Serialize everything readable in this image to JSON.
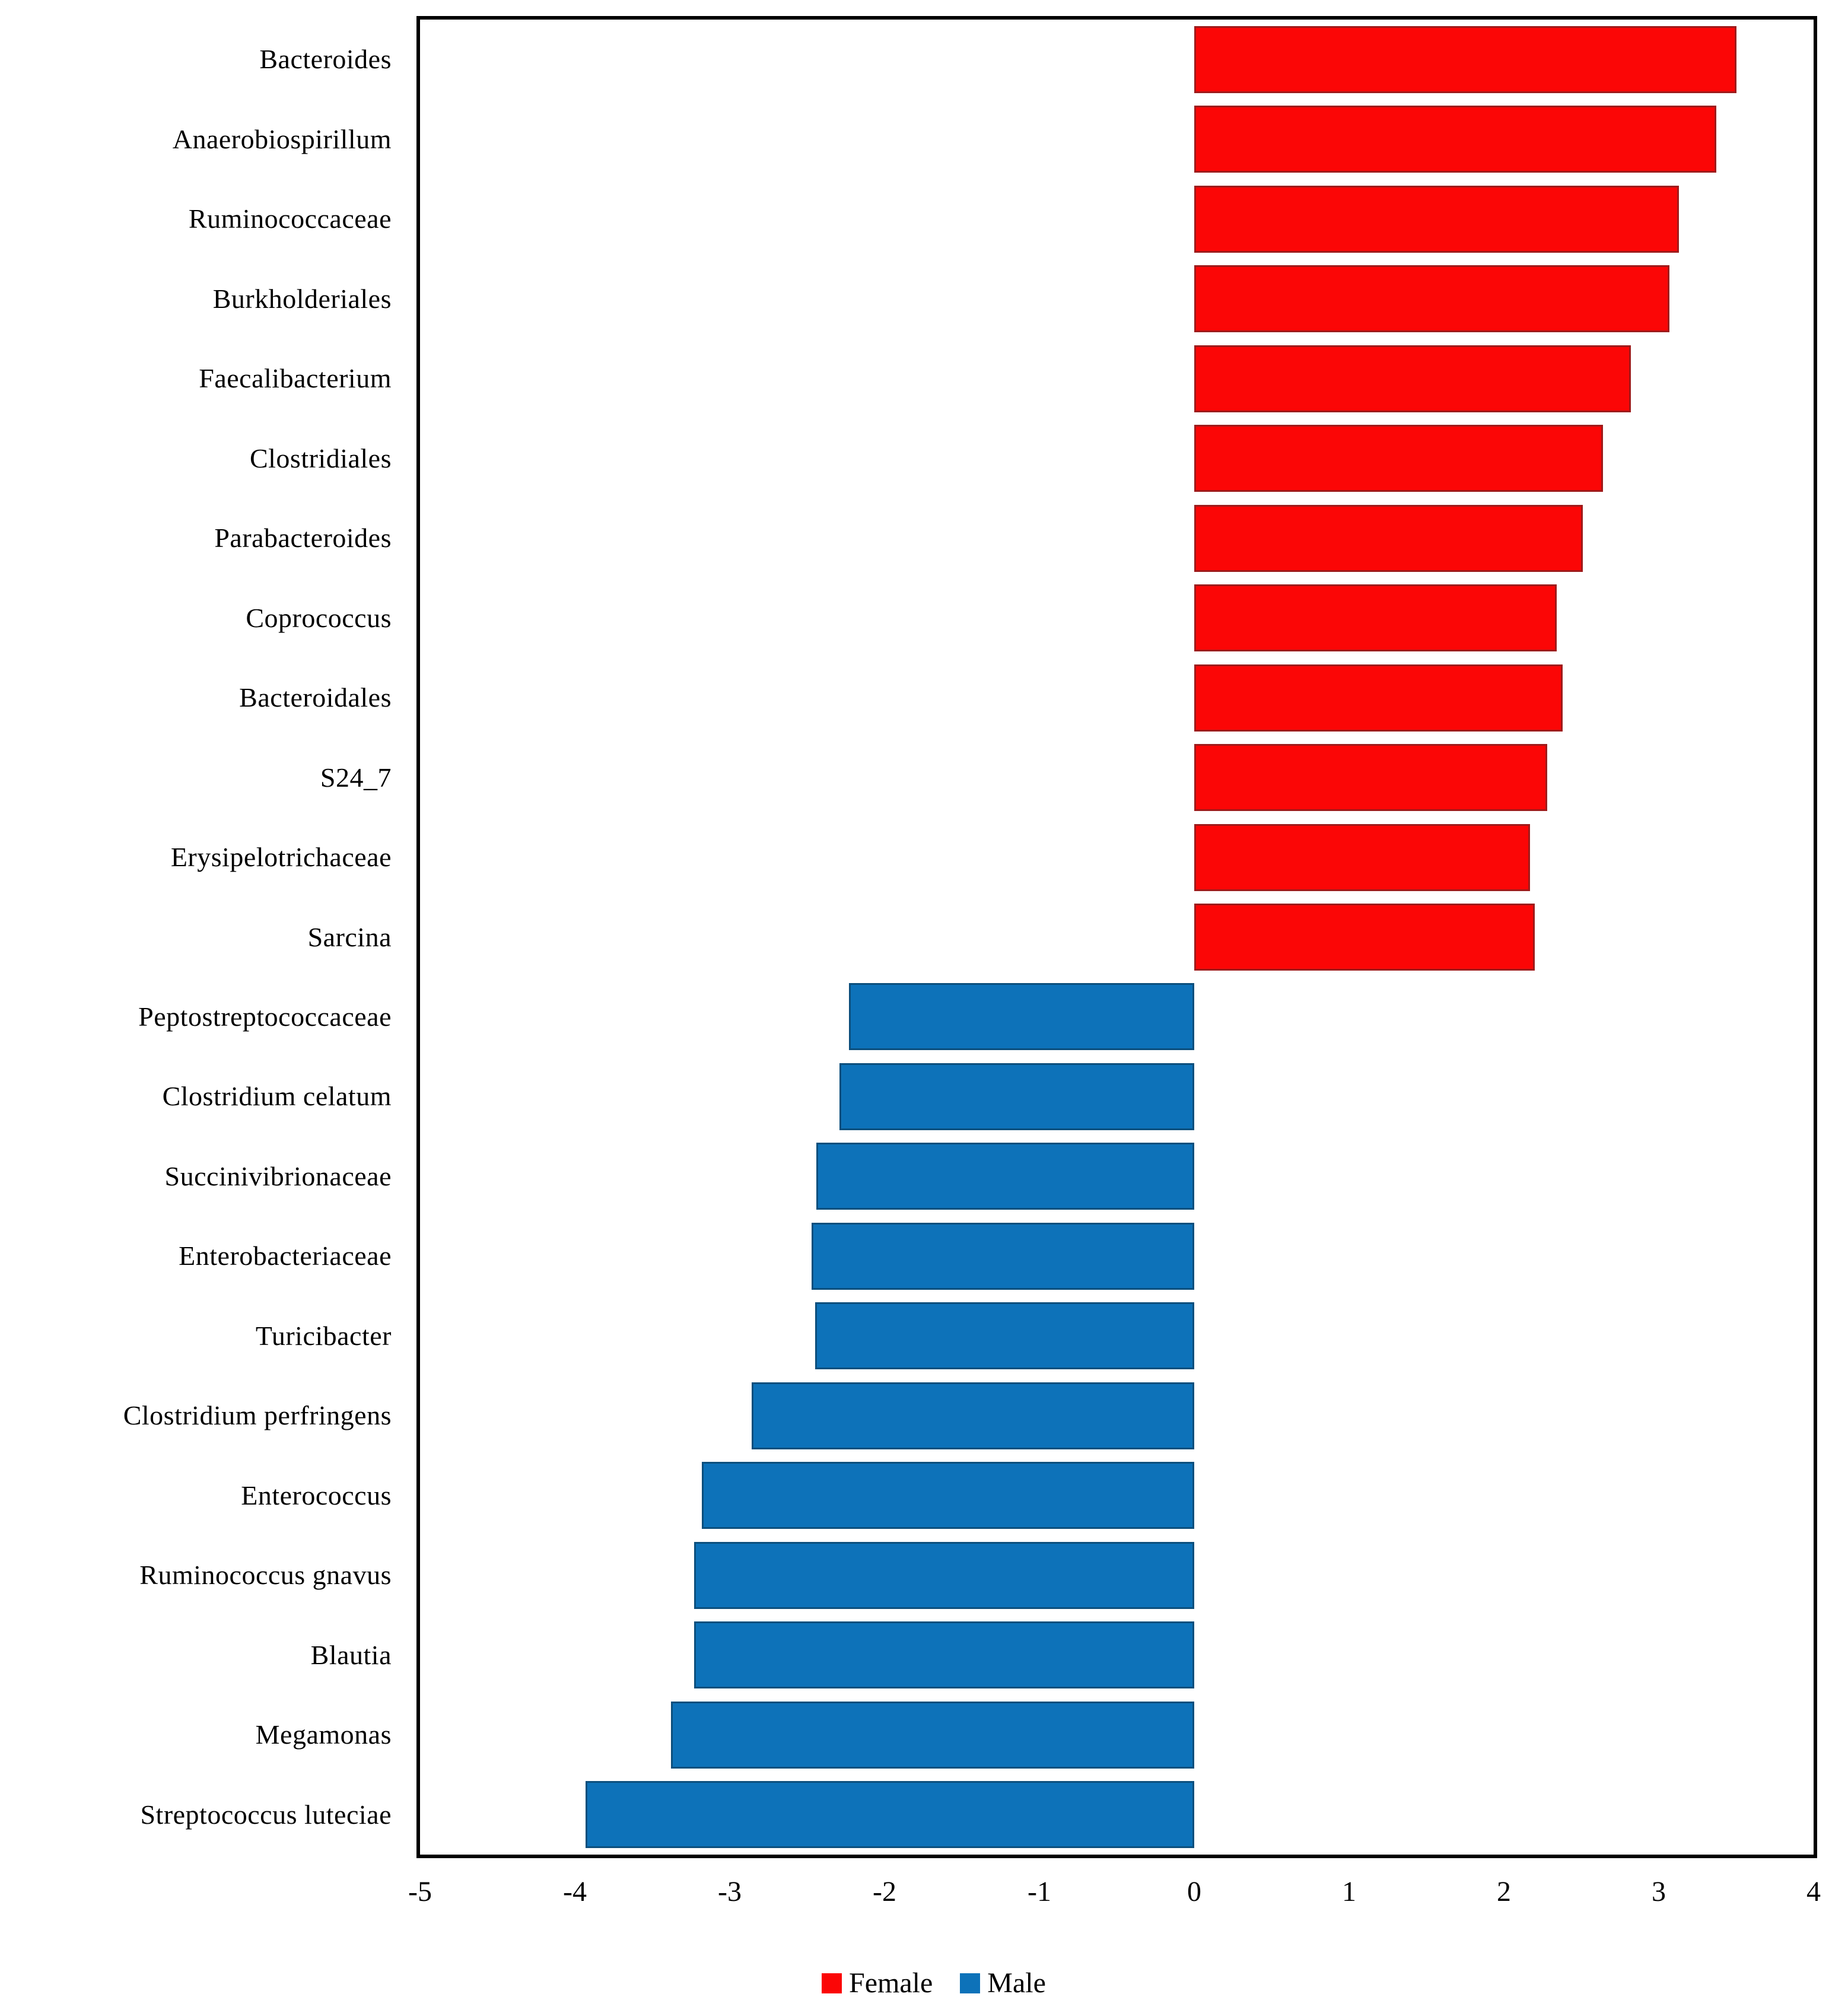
{
  "figure": {
    "background_color": "#ffffff",
    "axis_color": "#000000"
  },
  "chart_data": {
    "type": "bar",
    "orientation": "horizontal",
    "title": "",
    "xlabel": "",
    "ylabel": "",
    "xlim": [
      -5,
      4
    ],
    "x_ticks": [
      "-5",
      "-4",
      "-3",
      "-2",
      "-1",
      "0",
      "1",
      "2",
      "3",
      "4"
    ],
    "grid": false,
    "legend_position": "bottom-center",
    "colors": {
      "female": "#fb0606",
      "male": "#0d72b9",
      "female_border": "#9e1b1b",
      "male_border": "#0c4f7d"
    },
    "legend": [
      {
        "label": "Female",
        "color": "#fb0606"
      },
      {
        "label": "Male",
        "color": "#0d72b9"
      }
    ],
    "categories": [
      "Bacteroides",
      "Anaerobiospirillum",
      "Ruminococcaceae",
      "Burkholderiales",
      "Faecalibacterium",
      "Clostridiales",
      "Parabacteroides",
      "Coprococcus",
      "Bacteroidales",
      "S24_7",
      "Erysipelotrichaceae",
      "Sarcina",
      "Peptostreptococcaceae",
      "Clostridium celatum",
      "Succinivibrionaceae",
      "Enterobacteriaceae",
      "Turicibacter",
      "Clostridium perfringens",
      "Enterococcus",
      "Ruminococcus gnavus",
      "Blautia",
      "Megamonas",
      "Streptococcus luteciae"
    ],
    "points": [
      {
        "label": "Bacteroides",
        "value": 3.5,
        "group": "Female"
      },
      {
        "label": "Anaerobiospirillum",
        "value": 3.37,
        "group": "Female"
      },
      {
        "label": "Ruminococcaceae",
        "value": 3.13,
        "group": "Female"
      },
      {
        "label": "Burkholderiales",
        "value": 3.07,
        "group": "Female"
      },
      {
        "label": "Faecalibacterium",
        "value": 2.82,
        "group": "Female"
      },
      {
        "label": "Clostridiales",
        "value": 2.64,
        "group": "Female"
      },
      {
        "label": "Parabacteroides",
        "value": 2.51,
        "group": "Female"
      },
      {
        "label": "Coprococcus",
        "value": 2.34,
        "group": "Female"
      },
      {
        "label": "Bacteroidales",
        "value": 2.38,
        "group": "Female"
      },
      {
        "label": "S24_7",
        "value": 2.28,
        "group": "Female"
      },
      {
        "label": "Erysipelotrichaceae",
        "value": 2.17,
        "group": "Female"
      },
      {
        "label": "Sarcina",
        "value": 2.2,
        "group": "Female"
      },
      {
        "label": "Peptostreptococcaceae",
        "value": -2.23,
        "group": "Male"
      },
      {
        "label": "Clostridium celatum",
        "value": -2.29,
        "group": "Male"
      },
      {
        "label": "Succinivibrionaceae",
        "value": -2.44,
        "group": "Male"
      },
      {
        "label": "Enterobacteriaceae",
        "value": -2.47,
        "group": "Male"
      },
      {
        "label": "Turicibacter",
        "value": -2.45,
        "group": "Male"
      },
      {
        "label": "Clostridium perfringens",
        "value": -2.86,
        "group": "Male"
      },
      {
        "label": "Enterococcus",
        "value": -3.18,
        "group": "Male"
      },
      {
        "label": "Ruminococcus gnavus",
        "value": -3.23,
        "group": "Male"
      },
      {
        "label": "Blautia",
        "value": -3.23,
        "group": "Male"
      },
      {
        "label": "Megamonas",
        "value": -3.38,
        "group": "Male"
      },
      {
        "label": "Streptococcus luteciae",
        "value": -3.93,
        "group": "Male"
      }
    ]
  }
}
